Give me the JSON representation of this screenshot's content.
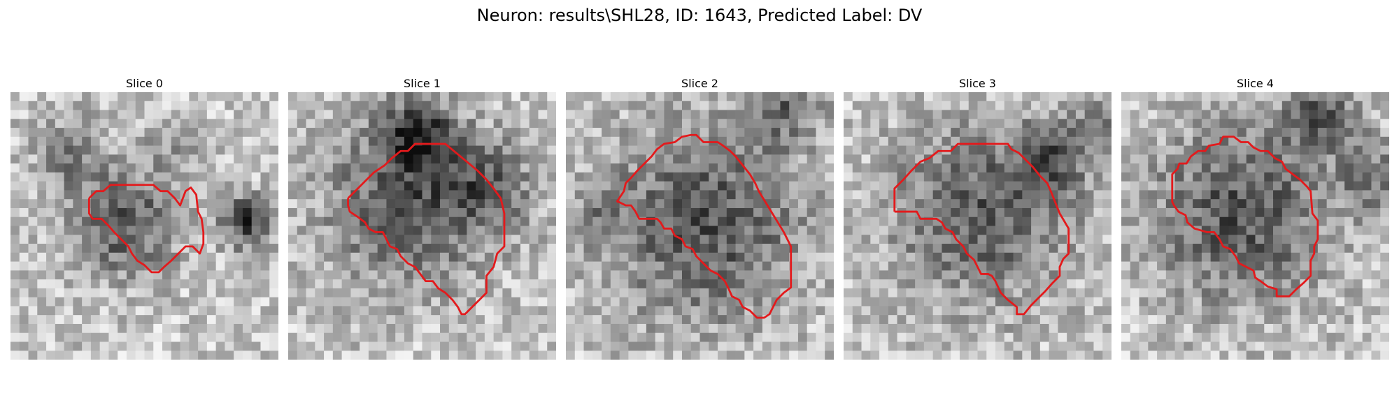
{
  "figure": {
    "title": "Neuron: results\\SHL28, ID: 1643, Predicted Label: DV"
  },
  "colors": {
    "contour": "#e31a1c",
    "background": "#ffffff",
    "text": "#000000"
  },
  "panels": [
    {
      "title": "Slice 0"
    },
    {
      "title": "Slice 1"
    },
    {
      "title": "Slice 2"
    },
    {
      "title": "Slice 3"
    },
    {
      "title": "Slice 4"
    }
  ]
}
